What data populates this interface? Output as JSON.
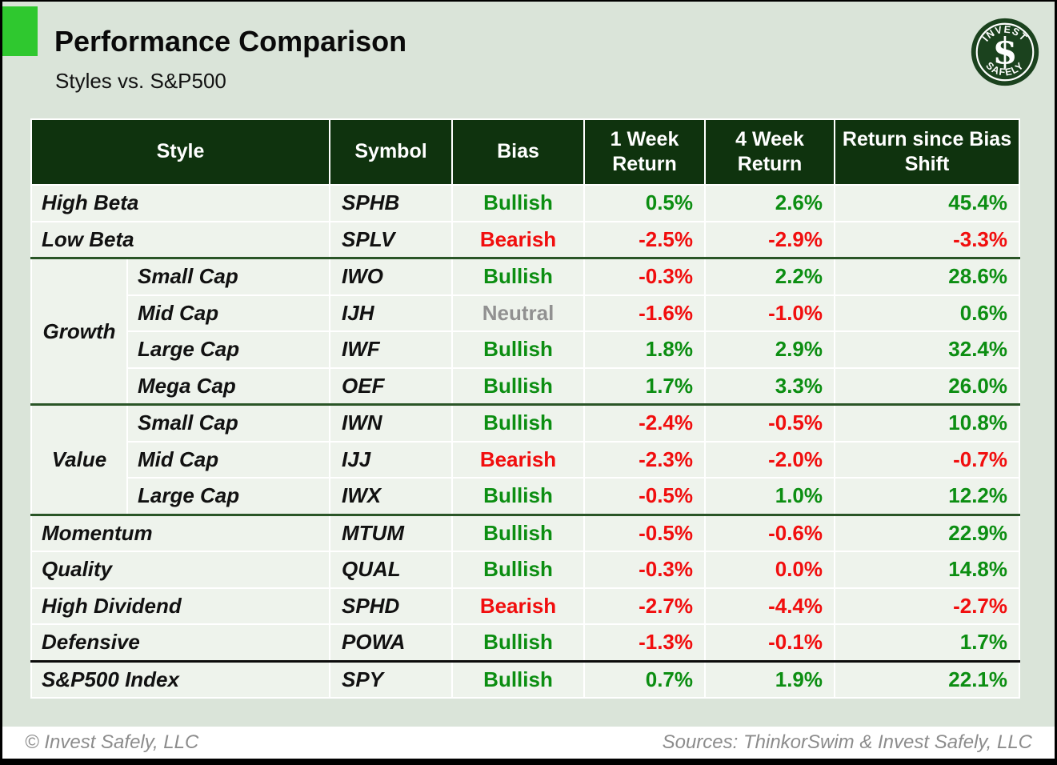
{
  "header": {
    "title": "Performance Comparison",
    "subtitle": "Styles vs. S&P500",
    "logo": {
      "top": "INVEST",
      "bottom": "SAFELY",
      "symbol": "$"
    }
  },
  "colors": {
    "page_background": "#dae4d9",
    "accent_green_square": "#2fc82f",
    "table_header_green": "#0f330e",
    "row_background": "#eef3ec",
    "positive_green": "#0c8e12",
    "negative_red": "#f10e0e",
    "neutral_gray": "#919191",
    "group_separator_green": "#2a5527",
    "footer_text_gray": "#8c8c8c"
  },
  "table": {
    "headers": [
      "Style",
      "Symbol",
      "Bias",
      "1 Week Return",
      "4 Week Return",
      "Return since Bias Shift"
    ],
    "rows": [
      {
        "style": "High Beta",
        "symbol": "SPHB",
        "bias": "Bullish",
        "bias_tone": "bullish",
        "returns": [
          {
            "v": "0.5%",
            "tone": "pos"
          },
          {
            "v": "2.6%",
            "tone": "pos"
          },
          {
            "v": "45.4%",
            "tone": "pos"
          }
        ]
      },
      {
        "style": "Low Beta",
        "symbol": "SPLV",
        "bias": "Bearish",
        "bias_tone": "bearish",
        "returns": [
          {
            "v": "-2.5%",
            "tone": "neg"
          },
          {
            "v": "-2.9%",
            "tone": "neg"
          },
          {
            "v": "-3.3%",
            "tone": "neg"
          }
        ],
        "separator_after": "green"
      },
      {
        "group": "Growth",
        "group_rows": 4,
        "style": "Small Cap",
        "symbol": "IWO",
        "bias": "Bullish",
        "bias_tone": "bullish",
        "returns": [
          {
            "v": "-0.3%",
            "tone": "neg"
          },
          {
            "v": "2.2%",
            "tone": "pos"
          },
          {
            "v": "28.6%",
            "tone": "pos"
          }
        ]
      },
      {
        "indent": true,
        "style": "Mid Cap",
        "symbol": "IJH",
        "bias": "Neutral",
        "bias_tone": "neutral",
        "returns": [
          {
            "v": "-1.6%",
            "tone": "neg"
          },
          {
            "v": "-1.0%",
            "tone": "neg"
          },
          {
            "v": "0.6%",
            "tone": "pos"
          }
        ]
      },
      {
        "indent": true,
        "style": "Large Cap",
        "symbol": "IWF",
        "bias": "Bullish",
        "bias_tone": "bullish",
        "returns": [
          {
            "v": "1.8%",
            "tone": "pos"
          },
          {
            "v": "2.9%",
            "tone": "pos"
          },
          {
            "v": "32.4%",
            "tone": "pos"
          }
        ]
      },
      {
        "indent": true,
        "style": "Mega Cap",
        "symbol": "OEF",
        "bias": "Bullish",
        "bias_tone": "bullish",
        "returns": [
          {
            "v": "1.7%",
            "tone": "pos"
          },
          {
            "v": "3.3%",
            "tone": "pos"
          },
          {
            "v": "26.0%",
            "tone": "pos"
          }
        ],
        "separator_after": "green"
      },
      {
        "group": "Value",
        "group_rows": 3,
        "style": "Small Cap",
        "symbol": "IWN",
        "bias": "Bullish",
        "bias_tone": "bullish",
        "returns": [
          {
            "v": "-2.4%",
            "tone": "neg"
          },
          {
            "v": "-0.5%",
            "tone": "neg"
          },
          {
            "v": "10.8%",
            "tone": "pos"
          }
        ]
      },
      {
        "indent": true,
        "style": "Mid Cap",
        "symbol": "IJJ",
        "bias": "Bearish",
        "bias_tone": "bearish",
        "returns": [
          {
            "v": "-2.3%",
            "tone": "neg"
          },
          {
            "v": "-2.0%",
            "tone": "neg"
          },
          {
            "v": "-0.7%",
            "tone": "neg"
          }
        ]
      },
      {
        "indent": true,
        "style": "Large Cap",
        "symbol": "IWX",
        "bias": "Bullish",
        "bias_tone": "bullish",
        "returns": [
          {
            "v": "-0.5%",
            "tone": "neg"
          },
          {
            "v": "1.0%",
            "tone": "pos"
          },
          {
            "v": "12.2%",
            "tone": "pos"
          }
        ],
        "separator_after": "green"
      },
      {
        "style": "Momentum",
        "symbol": "MTUM",
        "bias": "Bullish",
        "bias_tone": "bullish",
        "returns": [
          {
            "v": "-0.5%",
            "tone": "neg"
          },
          {
            "v": "-0.6%",
            "tone": "neg"
          },
          {
            "v": "22.9%",
            "tone": "pos"
          }
        ]
      },
      {
        "style": "Quality",
        "symbol": "QUAL",
        "bias": "Bullish",
        "bias_tone": "bullish",
        "returns": [
          {
            "v": "-0.3%",
            "tone": "neg"
          },
          {
            "v": "0.0%",
            "tone": "neg"
          },
          {
            "v": "14.8%",
            "tone": "pos"
          }
        ]
      },
      {
        "style": "High Dividend",
        "symbol": "SPHD",
        "bias": "Bearish",
        "bias_tone": "bearish",
        "returns": [
          {
            "v": "-2.7%",
            "tone": "neg"
          },
          {
            "v": "-4.4%",
            "tone": "neg"
          },
          {
            "v": "-2.7%",
            "tone": "neg"
          }
        ]
      },
      {
        "style": "Defensive",
        "symbol": "POWA",
        "bias": "Bullish",
        "bias_tone": "bullish",
        "returns": [
          {
            "v": "-1.3%",
            "tone": "neg"
          },
          {
            "v": "-0.1%",
            "tone": "neg"
          },
          {
            "v": "1.7%",
            "tone": "pos"
          }
        ],
        "separator_after": "black"
      },
      {
        "style": "S&P500 Index",
        "symbol": "SPY",
        "bias": "Bullish",
        "bias_tone": "bullish",
        "returns": [
          {
            "v": "0.7%",
            "tone": "pos"
          },
          {
            "v": "1.9%",
            "tone": "pos"
          },
          {
            "v": "22.1%",
            "tone": "pos"
          }
        ]
      }
    ]
  },
  "footer": {
    "left": "© Invest Safely, LLC",
    "right": "Sources: ThinkorSwim & Invest Safely, LLC"
  },
  "chart_data": {
    "type": "table",
    "title": "Performance Comparison",
    "subtitle": "Styles vs. S&P500",
    "columns": [
      "Style",
      "Symbol",
      "Bias",
      "1 Week Return",
      "4 Week Return",
      "Return since Bias Shift"
    ],
    "rows": [
      [
        "High Beta",
        "SPHB",
        "Bullish",
        "0.5%",
        "2.6%",
        "45.4%"
      ],
      [
        "Low Beta",
        "SPLV",
        "Bearish",
        "-2.5%",
        "-2.9%",
        "-3.3%"
      ],
      [
        "Growth / Small Cap",
        "IWO",
        "Bullish",
        "-0.3%",
        "2.2%",
        "28.6%"
      ],
      [
        "Growth / Mid Cap",
        "IJH",
        "Neutral",
        "-1.6%",
        "-1.0%",
        "0.6%"
      ],
      [
        "Growth / Large Cap",
        "IWF",
        "Bullish",
        "1.8%",
        "2.9%",
        "32.4%"
      ],
      [
        "Growth / Mega Cap",
        "OEF",
        "Bullish",
        "1.7%",
        "3.3%",
        "26.0%"
      ],
      [
        "Value / Small Cap",
        "IWN",
        "Bullish",
        "-2.4%",
        "-0.5%",
        "10.8%"
      ],
      [
        "Value / Mid Cap",
        "IJJ",
        "Bearish",
        "-2.3%",
        "-2.0%",
        "-0.7%"
      ],
      [
        "Value / Large Cap",
        "IWX",
        "Bullish",
        "-0.5%",
        "1.0%",
        "12.2%"
      ],
      [
        "Momentum",
        "MTUM",
        "Bullish",
        "-0.5%",
        "-0.6%",
        "22.9%"
      ],
      [
        "Quality",
        "QUAL",
        "Bullish",
        "-0.3%",
        "0.0%",
        "14.8%"
      ],
      [
        "High Dividend",
        "SPHD",
        "Bearish",
        "-2.7%",
        "-4.4%",
        "-2.7%"
      ],
      [
        "Defensive",
        "POWA",
        "Bullish",
        "-1.3%",
        "-0.1%",
        "1.7%"
      ],
      [
        "S&P500 Index",
        "SPY",
        "Bullish",
        "0.7%",
        "1.9%",
        "22.1%"
      ]
    ]
  }
}
